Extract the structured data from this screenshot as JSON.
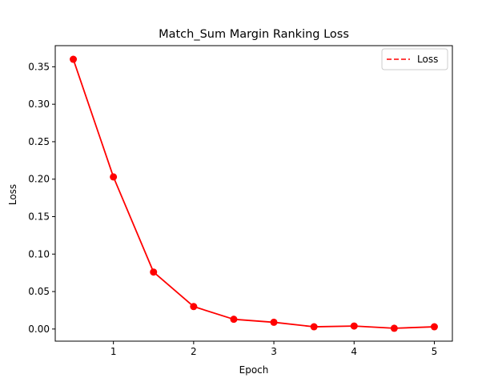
{
  "chart_data": {
    "type": "line",
    "title": "Match_Sum Margin Ranking Loss",
    "xlabel": "Epoch",
    "ylabel": "Loss",
    "xlim": [
      0.275,
      5.225
    ],
    "ylim": [
      -0.0162,
      0.3782
    ],
    "xticks": [
      1,
      2,
      3,
      4,
      5
    ],
    "xtick_labels": [
      "1",
      "2",
      "3",
      "4",
      "5"
    ],
    "yticks": [
      0.0,
      0.05,
      0.1,
      0.15,
      0.2,
      0.25,
      0.3,
      0.35
    ],
    "ytick_labels": [
      "0.00",
      "0.05",
      "0.10",
      "0.15",
      "0.20",
      "0.25",
      "0.30",
      "0.35"
    ],
    "grid": false,
    "legend_position": "top-right",
    "series": [
      {
        "name": "Loss",
        "color": "#ff0000",
        "legend_line_style": "dashed",
        "marker": "circle",
        "x": [
          0.5,
          1.0,
          1.5,
          2.0,
          2.5,
          3.0,
          3.5,
          4.0,
          4.5,
          5.0
        ],
        "y": [
          0.36,
          0.203,
          0.076,
          0.03,
          0.013,
          0.009,
          0.003,
          0.004,
          0.001,
          0.003
        ]
      }
    ]
  }
}
